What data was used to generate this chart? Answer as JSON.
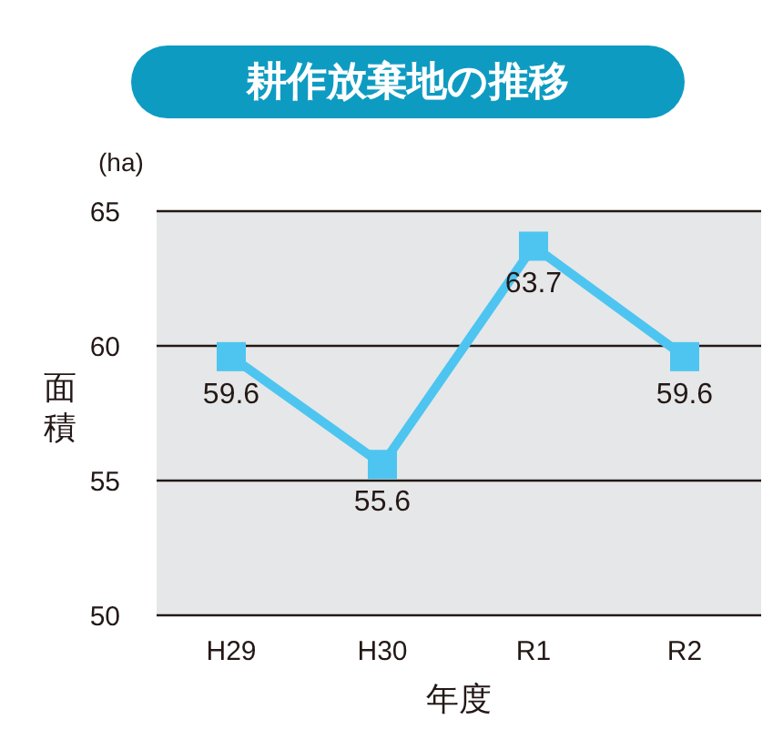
{
  "chart_data": {
    "type": "line",
    "title": "耕作放棄地の推移",
    "xlabel": "年度",
    "ylabel": "面積",
    "annotations": [
      "(ha)"
    ],
    "categories": [
      "H29",
      "H30",
      "R1",
      "R2"
    ],
    "series": [
      {
        "color": "#4dc5f0",
        "values": [
          59.6,
          55.6,
          63.7,
          59.6
        ]
      }
    ],
    "ylim": [
      50,
      65
    ],
    "yticks": [
      50,
      55,
      60,
      65
    ],
    "grid": "y",
    "marker": "square",
    "line_style": "solid",
    "data_labels": true,
    "legend": false
  }
}
